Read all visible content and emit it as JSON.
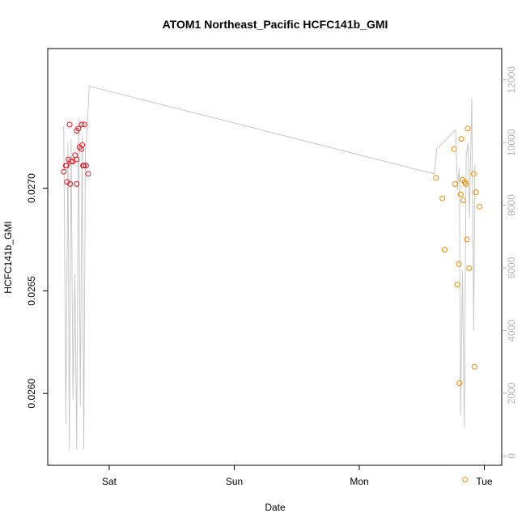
{
  "chart_data": {
    "type": "scatter",
    "title": "ATOM1 Northeast_Pacific HCFC141b_GMI",
    "xlabel": "Date",
    "ylabel": "HCFC141b_GMI",
    "x_range_days": [
      -0.45,
      3.1
    ],
    "ylim": [
      0.02565,
      0.02768
    ],
    "y2lim": [
      -300,
      13000
    ],
    "x_ticks": [
      {
        "value": 0,
        "label": "Sat"
      },
      {
        "value": 1,
        "label": "Sun"
      },
      {
        "value": 2,
        "label": "Mon"
      },
      {
        "value": 3,
        "label": "Tue"
      }
    ],
    "y_ticks": [
      {
        "value": 0.026,
        "label": "0.0260"
      },
      {
        "value": 0.0265,
        "label": "0.0265"
      },
      {
        "value": 0.027,
        "label": "0.0270"
      }
    ],
    "y2_ticks": [
      {
        "value": 0,
        "label": "0"
      },
      {
        "value": 2000,
        "label": "2000"
      },
      {
        "value": 4000,
        "label": "4000"
      },
      {
        "value": 6000,
        "label": "6000"
      },
      {
        "value": 8000,
        "label": "8000"
      },
      {
        "value": 10000,
        "label": "10000"
      },
      {
        "value": 12000,
        "label": "12000"
      }
    ],
    "series": [
      {
        "color": "#e8141e",
        "points": [
          [
            -0.364,
            0.02708
          ],
          [
            -0.347,
            0.02711
          ],
          [
            -0.342,
            0.02711
          ],
          [
            -0.338,
            0.02703
          ],
          [
            -0.325,
            0.02714
          ],
          [
            -0.312,
            0.02702
          ],
          [
            -0.317,
            0.02731
          ],
          [
            -0.305,
            0.02713
          ],
          [
            -0.291,
            0.02713
          ],
          [
            -0.26,
            0.02714
          ],
          [
            -0.273,
            0.02716
          ],
          [
            -0.247,
            0.02729
          ],
          [
            -0.26,
            0.02728
          ],
          [
            -0.261,
            0.02702
          ],
          [
            -0.238,
            0.0272
          ],
          [
            -0.223,
            0.02719
          ],
          [
            -0.216,
            0.02721
          ],
          [
            -0.22,
            0.02731
          ],
          [
            -0.209,
            0.02711
          ],
          [
            -0.199,
            0.02731
          ],
          [
            -0.186,
            0.02711
          ],
          [
            -0.204,
            0.02711
          ],
          [
            -0.169,
            0.02707
          ]
        ]
      },
      {
        "color": "#f08c00",
        "points": [
          [
            2.612,
            0.02705
          ],
          [
            2.665,
            0.02695
          ],
          [
            2.683,
            0.0267
          ],
          [
            2.758,
            0.02719
          ],
          [
            2.766,
            0.02702
          ],
          [
            2.783,
            0.02653
          ],
          [
            2.796,
            0.02663
          ],
          [
            2.801,
            0.02605
          ],
          [
            2.811,
            0.02697
          ],
          [
            2.816,
            0.02724
          ],
          [
            2.826,
            0.02704
          ],
          [
            2.832,
            0.02694
          ],
          [
            2.844,
            0.02703
          ],
          [
            2.851,
            0.02702
          ],
          [
            2.861,
            0.02675
          ],
          [
            2.878,
            0.02661
          ],
          [
            2.915,
            0.02707
          ],
          [
            2.921,
            0.02613
          ],
          [
            2.933,
            0.02698
          ],
          [
            2.961,
            0.02691
          ],
          [
            2.867,
            0.02729
          ],
          [
            2.846,
            0.02558
          ]
        ]
      }
    ],
    "line_series": {
      "color": "#c8c8c8",
      "axis": "right",
      "points": [
        [
          -0.364,
          10500
        ],
        [
          -0.347,
          1000
        ],
        [
          -0.33,
          10000
        ],
        [
          -0.319,
          200
        ],
        [
          -0.305,
          10100
        ],
        [
          -0.29,
          1800
        ],
        [
          -0.275,
          5800
        ],
        [
          -0.26,
          200
        ],
        [
          -0.245,
          10800
        ],
        [
          -0.232,
          1600
        ],
        [
          -0.217,
          10200
        ],
        [
          -0.204,
          200
        ],
        [
          -0.19,
          9900
        ],
        [
          -0.18,
          10200
        ],
        [
          -0.16,
          11800
        ],
        [
          2.6,
          9000
        ],
        [
          2.62,
          9800
        ],
        [
          2.77,
          10400
        ],
        [
          2.785,
          8500
        ],
        [
          2.8,
          9200
        ],
        [
          2.81,
          1300
        ],
        [
          2.825,
          5900
        ],
        [
          2.84,
          900
        ],
        [
          2.855,
          9600
        ],
        [
          2.87,
          10000
        ],
        [
          2.88,
          7600
        ],
        [
          2.9,
          11400
        ],
        [
          2.915,
          4000
        ],
        [
          2.925,
          9300
        ]
      ]
    }
  }
}
